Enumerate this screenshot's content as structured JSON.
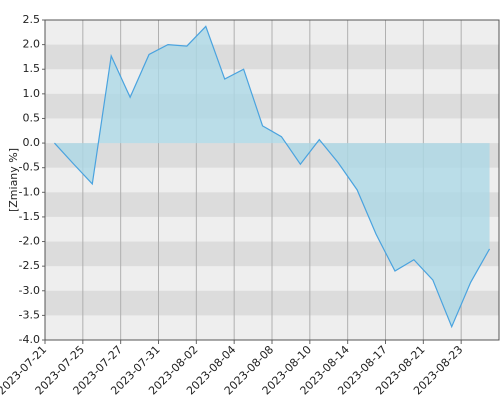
{
  "chart_data": {
    "type": "area",
    "y_label": "[Zmiany %]",
    "categories": [
      "2023-07-21",
      null,
      "2023-07-25",
      null,
      "2023-07-27",
      null,
      "2023-07-31",
      null,
      "2023-08-02",
      null,
      "2023-08-04",
      null,
      "2023-08-08",
      null,
      "2023-08-10",
      null,
      "2023-08-14",
      null,
      "2023-08-17",
      null,
      "2023-08-21",
      null,
      "2023-08-23",
      null
    ],
    "values": [
      0.0,
      -0.42,
      -0.83,
      1.77,
      0.93,
      1.8,
      2.0,
      1.97,
      2.37,
      1.3,
      1.5,
      0.35,
      0.13,
      -0.43,
      0.07,
      -0.4,
      -0.95,
      -1.85,
      -2.6,
      -2.37,
      -2.78,
      -3.73,
      -2.83,
      -2.15
    ],
    "color": "#4aa3df",
    "fill": "#add8e6",
    "ylim": [
      -4.0,
      2.5
    ],
    "yticks": [
      2.5,
      {
        "value": 2.0,
        "label": "2.0"
      },
      1.5,
      {
        "value": 1.0,
        "label": "1.0"
      },
      0.5,
      {
        "value": 0.0,
        "label": "0.0"
      },
      -0.5,
      {
        "value": -1.0,
        "label": "-1.0"
      },
      -1.5,
      {
        "value": -2.0,
        "label": "-2.0"
      },
      -2.5,
      {
        "value": -3.0,
        "label": "-3.0"
      },
      -3.5,
      {
        "value": -4.0,
        "label": "-4.0"
      }
    ],
    "grid": true
  }
}
